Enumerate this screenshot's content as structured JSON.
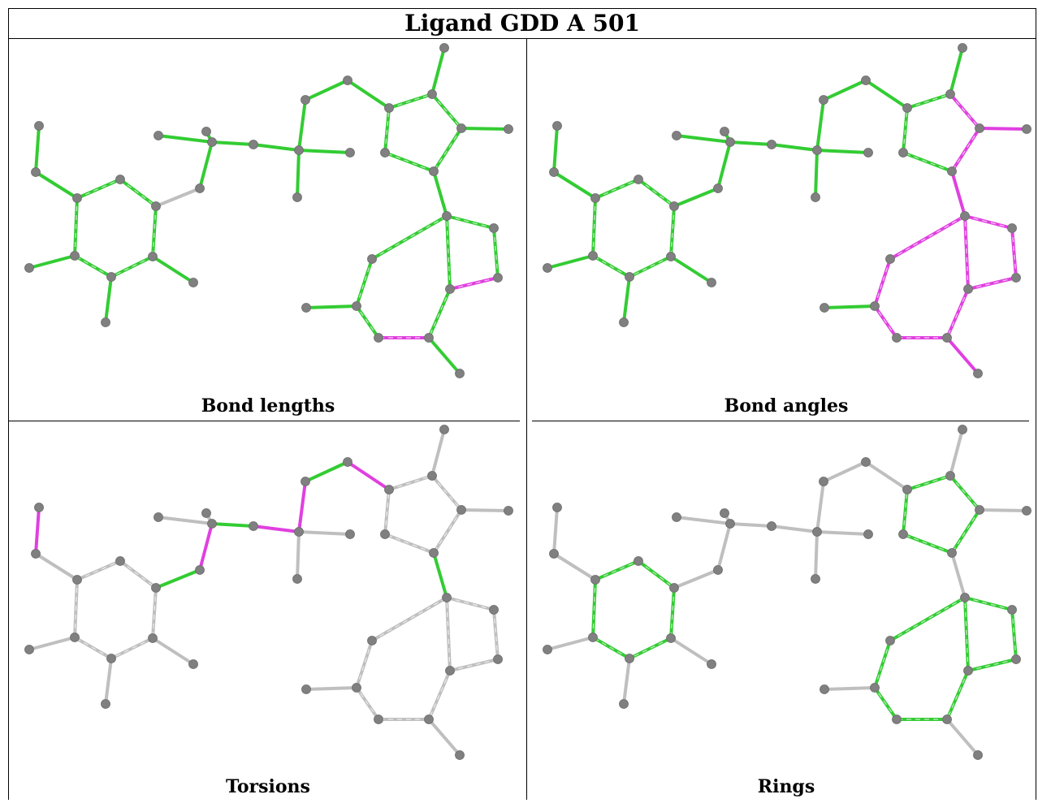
{
  "title": "Ligand GDD A 501",
  "panels": [
    {
      "caption": "Bond lengths",
      "highlight": "#e040e0",
      "base": "#33cc33"
    },
    {
      "caption": "Bond angles",
      "highlight": "#e040e0",
      "base": "#33cc33"
    },
    {
      "caption": "Torsions",
      "highlight": "#e040e0",
      "base": "#bfbfbf"
    },
    {
      "caption": "Rings",
      "highlight": "#33cc33",
      "base": "#bfbfbf"
    }
  ],
  "colors": {
    "atom": "#808080",
    "outlier": "#e040e0",
    "ok": "#33cc33",
    "neutral": "#bfbfbf"
  }
}
